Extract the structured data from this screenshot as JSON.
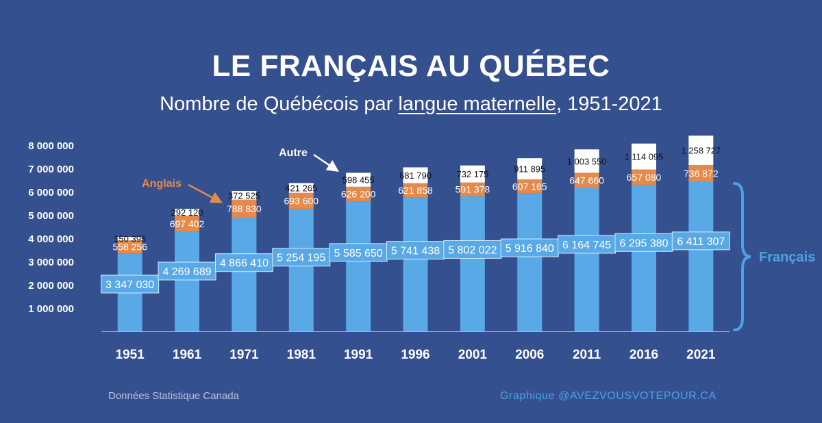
{
  "title": "LE FRANÇAIS AU QUÉBEC",
  "subtitle": {
    "prefix": "Nombre de Québécois par ",
    "underlined": "langue maternelle",
    "suffix": ", 1951-2021"
  },
  "source": "Données Statistique Canada",
  "credit": "Graphique @AVEZVOUSVOTEPOUR.CA",
  "colors": {
    "background": "#35508f",
    "francais": "#59a9e6",
    "anglais": "#e48a4a",
    "autre": "#ffffff",
    "axis_text": "#ffffff",
    "annotation_anglais": "#e48a4a",
    "annotation_francais": "#4aa3e8"
  },
  "chart_data": {
    "type": "bar",
    "stacked": true,
    "title": "LE FRANÇAIS AU QUÉBEC",
    "subtitle": "Nombre de Québécois par langue maternelle, 1951-2021",
    "categories": [
      "1951",
      "1961",
      "1971",
      "1981",
      "1991",
      "1996",
      "2001",
      "2006",
      "2011",
      "2016",
      "2021"
    ],
    "series": [
      {
        "name": "Français",
        "values": [
          3347030,
          4269689,
          4866410,
          5254195,
          5585650,
          5741438,
          5802022,
          5916840,
          6164745,
          6295380,
          6411307
        ],
        "labels": [
          "3 347 030",
          "4 269 689",
          "4 866 410",
          "5 254 195",
          "5 585 650",
          "5 741 438",
          "5 802 022",
          "5 916 840",
          "6 164 745",
          "6 295 380",
          "6 411 307"
        ]
      },
      {
        "name": "Anglais",
        "values": [
          558256,
          697402,
          788830,
          693600,
          626200,
          621858,
          591378,
          607165,
          647660,
          657080,
          736872
        ],
        "labels": [
          "558 256",
          "697 402",
          "788 830",
          "693 600",
          "626 200",
          "621 858",
          "591 378",
          "607 165",
          "647 660",
          "657 080",
          "736 872"
        ]
      },
      {
        "name": "Autre",
        "values": [
          150395,
          292120,
          372525,
          421265,
          598455,
          681790,
          732175,
          911895,
          1003550,
          1114095,
          1258727
        ],
        "labels": [
          "150 395",
          "292 120",
          "372 525",
          "421 265",
          "598 455",
          "681 790",
          "732 175",
          "911 895",
          "1 003 550",
          "1 114 095",
          "1 258 727"
        ]
      }
    ],
    "yticks": [
      1000000,
      2000000,
      3000000,
      4000000,
      5000000,
      6000000,
      7000000,
      8000000
    ],
    "ytick_labels": [
      "1 000 000",
      "2 000 000",
      "3 000 000",
      "4 000 000",
      "5 000 000",
      "6 000 000",
      "7 000 000",
      "8 000 000"
    ],
    "ylim": [
      0,
      8000000
    ],
    "xlabel": "",
    "ylabel": "",
    "grid": false,
    "annotations": {
      "anglais": "Anglais",
      "autre": "Autre",
      "francais": "Français"
    }
  }
}
